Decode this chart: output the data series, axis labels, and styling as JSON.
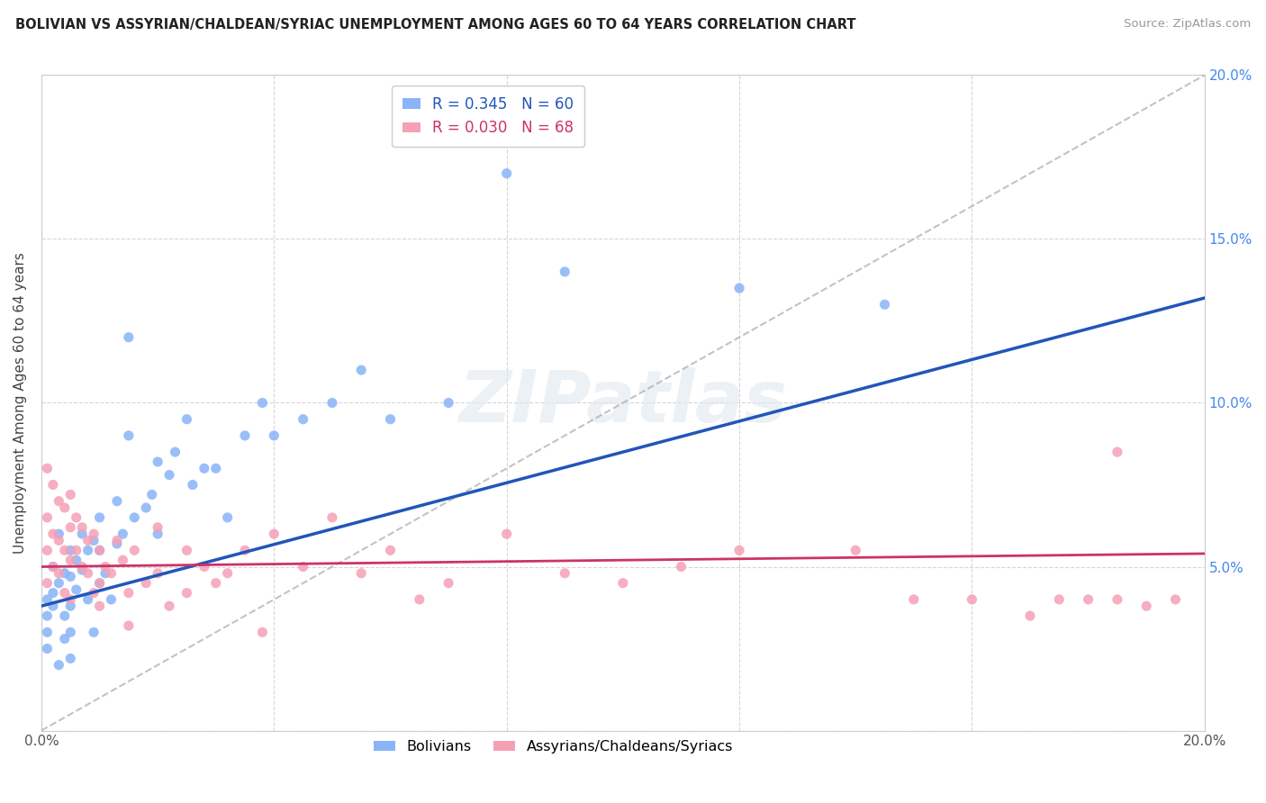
{
  "title": "BOLIVIAN VS ASSYRIAN/CHALDEAN/SYRIAC UNEMPLOYMENT AMONG AGES 60 TO 64 YEARS CORRELATION CHART",
  "source": "Source: ZipAtlas.com",
  "ylabel": "Unemployment Among Ages 60 to 64 years",
  "xlim": [
    0.0,
    0.2
  ],
  "ylim": [
    0.0,
    0.2
  ],
  "bolivians_R": 0.345,
  "bolivians_N": 60,
  "assyrians_R": 0.03,
  "assyrians_N": 68,
  "blue_color": "#89b4f7",
  "pink_color": "#f5a0b5",
  "blue_line_color": "#2255bb",
  "pink_line_color": "#cc3366",
  "watermark": "ZIPatlas",
  "bx": [
    0.001,
    0.001,
    0.001,
    0.001,
    0.002,
    0.002,
    0.002,
    0.003,
    0.003,
    0.003,
    0.004,
    0.004,
    0.004,
    0.005,
    0.005,
    0.005,
    0.005,
    0.005,
    0.006,
    0.006,
    0.007,
    0.007,
    0.008,
    0.008,
    0.009,
    0.009,
    0.01,
    0.01,
    0.01,
    0.011,
    0.012,
    0.013,
    0.013,
    0.014,
    0.015,
    0.015,
    0.016,
    0.018,
    0.019,
    0.02,
    0.02,
    0.022,
    0.023,
    0.025,
    0.026,
    0.028,
    0.03,
    0.032,
    0.035,
    0.038,
    0.04,
    0.045,
    0.05,
    0.055,
    0.06,
    0.07,
    0.08,
    0.09,
    0.12,
    0.145
  ],
  "by": [
    0.04,
    0.035,
    0.03,
    0.025,
    0.05,
    0.042,
    0.038,
    0.045,
    0.06,
    0.02,
    0.048,
    0.035,
    0.028,
    0.055,
    0.047,
    0.038,
    0.03,
    0.022,
    0.052,
    0.043,
    0.049,
    0.06,
    0.055,
    0.04,
    0.058,
    0.03,
    0.065,
    0.055,
    0.045,
    0.048,
    0.04,
    0.07,
    0.057,
    0.06,
    0.12,
    0.09,
    0.065,
    0.068,
    0.072,
    0.082,
    0.06,
    0.078,
    0.085,
    0.095,
    0.075,
    0.08,
    0.08,
    0.065,
    0.09,
    0.1,
    0.09,
    0.095,
    0.1,
    0.11,
    0.095,
    0.1,
    0.17,
    0.14,
    0.135,
    0.13
  ],
  "ax": [
    0.001,
    0.001,
    0.001,
    0.001,
    0.002,
    0.002,
    0.002,
    0.003,
    0.003,
    0.003,
    0.004,
    0.004,
    0.004,
    0.005,
    0.005,
    0.005,
    0.005,
    0.006,
    0.006,
    0.007,
    0.007,
    0.008,
    0.008,
    0.009,
    0.009,
    0.01,
    0.01,
    0.01,
    0.011,
    0.012,
    0.013,
    0.014,
    0.015,
    0.015,
    0.016,
    0.018,
    0.02,
    0.02,
    0.022,
    0.025,
    0.025,
    0.028,
    0.03,
    0.032,
    0.035,
    0.038,
    0.04,
    0.045,
    0.05,
    0.055,
    0.06,
    0.065,
    0.07,
    0.08,
    0.09,
    0.1,
    0.11,
    0.12,
    0.14,
    0.15,
    0.16,
    0.17,
    0.175,
    0.18,
    0.185,
    0.19,
    0.195,
    0.185
  ],
  "ay": [
    0.08,
    0.065,
    0.055,
    0.045,
    0.075,
    0.06,
    0.05,
    0.07,
    0.058,
    0.048,
    0.068,
    0.055,
    0.042,
    0.072,
    0.062,
    0.052,
    0.04,
    0.065,
    0.055,
    0.062,
    0.05,
    0.058,
    0.048,
    0.06,
    0.042,
    0.055,
    0.045,
    0.038,
    0.05,
    0.048,
    0.058,
    0.052,
    0.042,
    0.032,
    0.055,
    0.045,
    0.062,
    0.048,
    0.038,
    0.055,
    0.042,
    0.05,
    0.045,
    0.048,
    0.055,
    0.03,
    0.06,
    0.05,
    0.065,
    0.048,
    0.055,
    0.04,
    0.045,
    0.06,
    0.048,
    0.045,
    0.05,
    0.055,
    0.055,
    0.04,
    0.04,
    0.035,
    0.04,
    0.04,
    0.04,
    0.038,
    0.04,
    0.085
  ],
  "blue_trendline_x": [
    0.0,
    0.2
  ],
  "blue_trendline_y": [
    0.038,
    0.132
  ],
  "pink_trendline_x": [
    0.0,
    0.2
  ],
  "pink_trendline_y": [
    0.05,
    0.054
  ]
}
